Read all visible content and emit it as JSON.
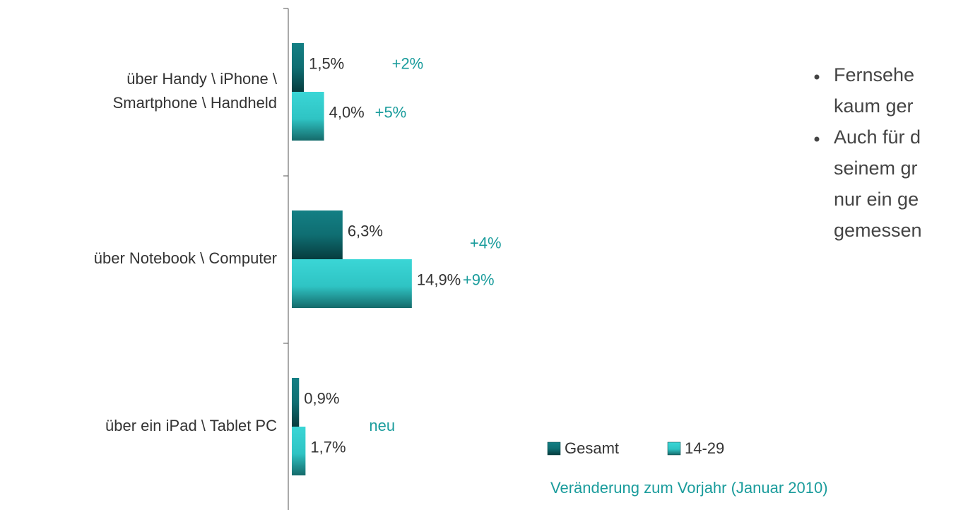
{
  "chart_data": {
    "type": "barh",
    "categories": [
      "über Handy \\ iPhone \\\nSmartphone \\ Handheld",
      "über Notebook \\ Computer",
      "über ein iPad \\ Tablet PC"
    ],
    "series": [
      {
        "name": "Gesamt",
        "color": "#0f6e72",
        "values": [
          1.5,
          6.3,
          0.9
        ],
        "value_labels": [
          "1,5%",
          "6,3%",
          "0,9%"
        ],
        "change_labels": [
          "+2%",
          "+4%",
          null
        ]
      },
      {
        "name": "14-29",
        "color": "#33cccc",
        "values": [
          4.0,
          14.9,
          1.7
        ],
        "value_labels": [
          "4,0%",
          "14,9%",
          "1,7%"
        ],
        "change_labels": [
          "+5%",
          "+9%",
          null
        ]
      }
    ],
    "annotations": [
      "neu"
    ],
    "footnote": "Veränderung zum Vorjahr (Januar 2010)",
    "xlim": [
      0,
      40
    ]
  },
  "text_panel": {
    "bullets": [
      [
        "Fernsehe",
        "kaum ger"
      ],
      [
        "Auch für d",
        "seinem gr",
        "nur ein ge",
        "gemessen"
      ]
    ]
  }
}
